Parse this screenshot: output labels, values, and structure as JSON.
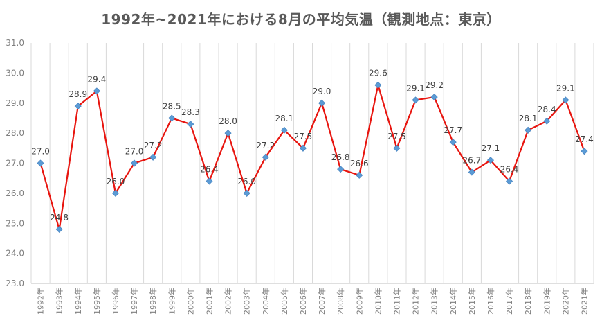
{
  "chart_data": {
    "type": "line",
    "title": "1992年~2021年における8月の平均気温（観測地点：東京）",
    "xlabel": "",
    "ylabel": "",
    "ylim": [
      23.0,
      31.0
    ],
    "yticks": [
      "23.0",
      "24.0",
      "25.0",
      "26.0",
      "27.0",
      "28.0",
      "29.0",
      "30.0",
      "31.0"
    ],
    "grid": "vertical",
    "categories": [
      "1992年",
      "1993年",
      "1994年",
      "1995年",
      "1996年",
      "1997年",
      "1998年",
      "1999年",
      "2000年",
      "2001年",
      "2002年",
      "2003年",
      "2004年",
      "2005年",
      "2006年",
      "2007年",
      "2008年",
      "2009年",
      "2010年",
      "2011年",
      "2012年",
      "2013年",
      "2014年",
      "2015年",
      "2016年",
      "2017年",
      "2018年",
      "2019年",
      "2020年",
      "2021年"
    ],
    "series": [
      {
        "name": "8月の平均気温",
        "values": [
          27.0,
          24.8,
          28.9,
          29.4,
          26.0,
          27.0,
          27.2,
          28.5,
          28.3,
          26.4,
          28.0,
          26.0,
          27.2,
          28.1,
          27.5,
          29.0,
          26.8,
          26.6,
          29.6,
          27.5,
          29.1,
          29.2,
          27.7,
          26.7,
          27.1,
          26.4,
          28.1,
          28.4,
          29.1,
          27.4
        ],
        "labels": [
          "27.0",
          "24.8",
          "28.9",
          "29.4",
          "26.0",
          "27.0",
          "27.2",
          "28.5",
          "28.3",
          "26.4",
          "28.0",
          "26.0",
          "27.2",
          "28.1",
          "27.5",
          "29.0",
          "26.8",
          "26.6",
          "29.6",
          "27.5",
          "29.1",
          "29.2",
          "27.7",
          "26.7",
          "27.1",
          "26.4",
          "28.1",
          "28.4",
          "29.1",
          "27.4"
        ],
        "line_color": "#e8150f",
        "marker_color": "#5b9bd5"
      }
    ]
  }
}
